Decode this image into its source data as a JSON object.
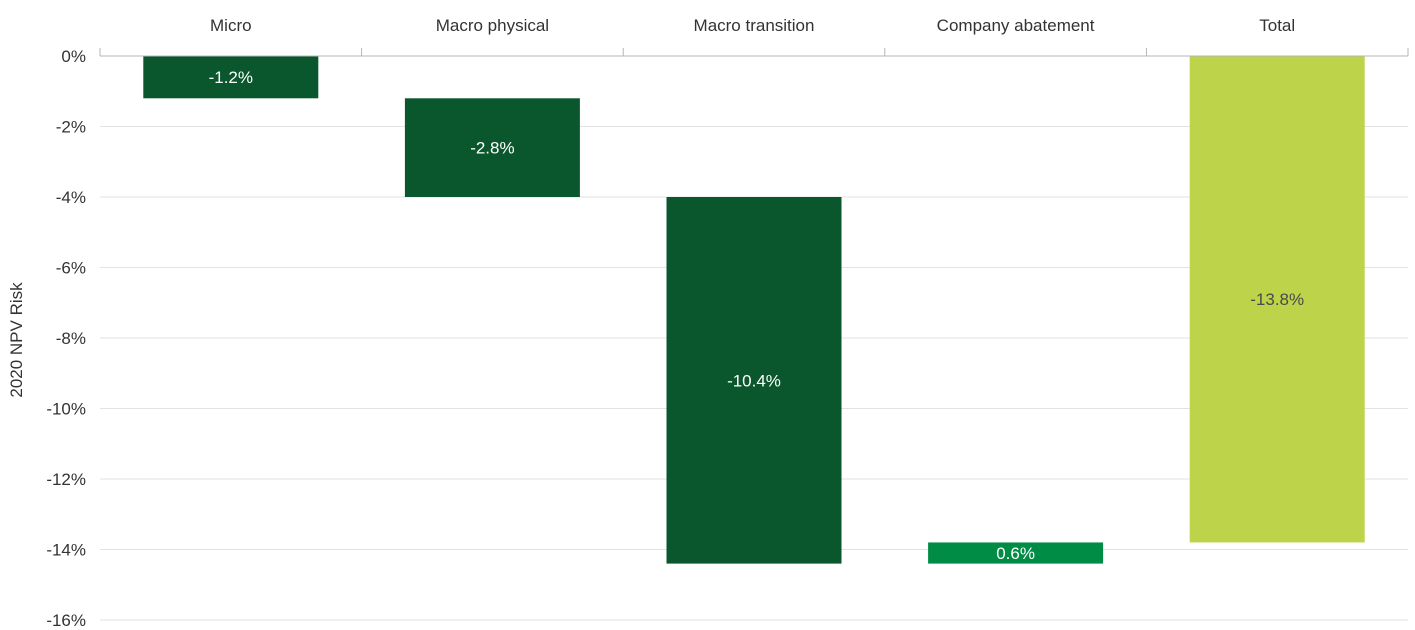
{
  "chart_data": {
    "type": "bar",
    "subtype": "waterfall",
    "title": "",
    "xlabel": "",
    "ylabel": "2020 NPV Risk",
    "categories": [
      "Micro",
      "Macro physical",
      "Macro transition",
      "Company abatement",
      "Total"
    ],
    "values": [
      -1.2,
      -2.8,
      -10.4,
      0.6,
      -13.8
    ],
    "data_labels": [
      "-1.2%",
      "-2.8%",
      "-10.4%",
      "0.6%",
      "-13.8%"
    ],
    "bar_ranges": [
      [
        0,
        -1.2
      ],
      [
        -1.2,
        -4.0
      ],
      [
        -4.0,
        -14.4
      ],
      [
        -14.4,
        -13.8
      ],
      [
        0,
        -13.8
      ]
    ],
    "ylim": [
      -16,
      0
    ],
    "yticks": [
      0,
      -2,
      -4,
      -6,
      -8,
      -10,
      -12,
      -14,
      -16
    ],
    "ytick_labels": [
      "0%",
      "-2%",
      "-4%",
      "-6%",
      "-8%",
      "-10%",
      "-12%",
      "-14%",
      "-16%"
    ],
    "x_axis_position": "top",
    "grid": true,
    "legend": "none",
    "colors": {
      "negative": "#0b572d",
      "positive": "#008c44",
      "total": "#bcd34a",
      "label_on_dark": "#ffffff",
      "label_on_light": "#4a4a4a",
      "grid": "#e2e2e2",
      "axis": "#b5b5b5"
    }
  }
}
